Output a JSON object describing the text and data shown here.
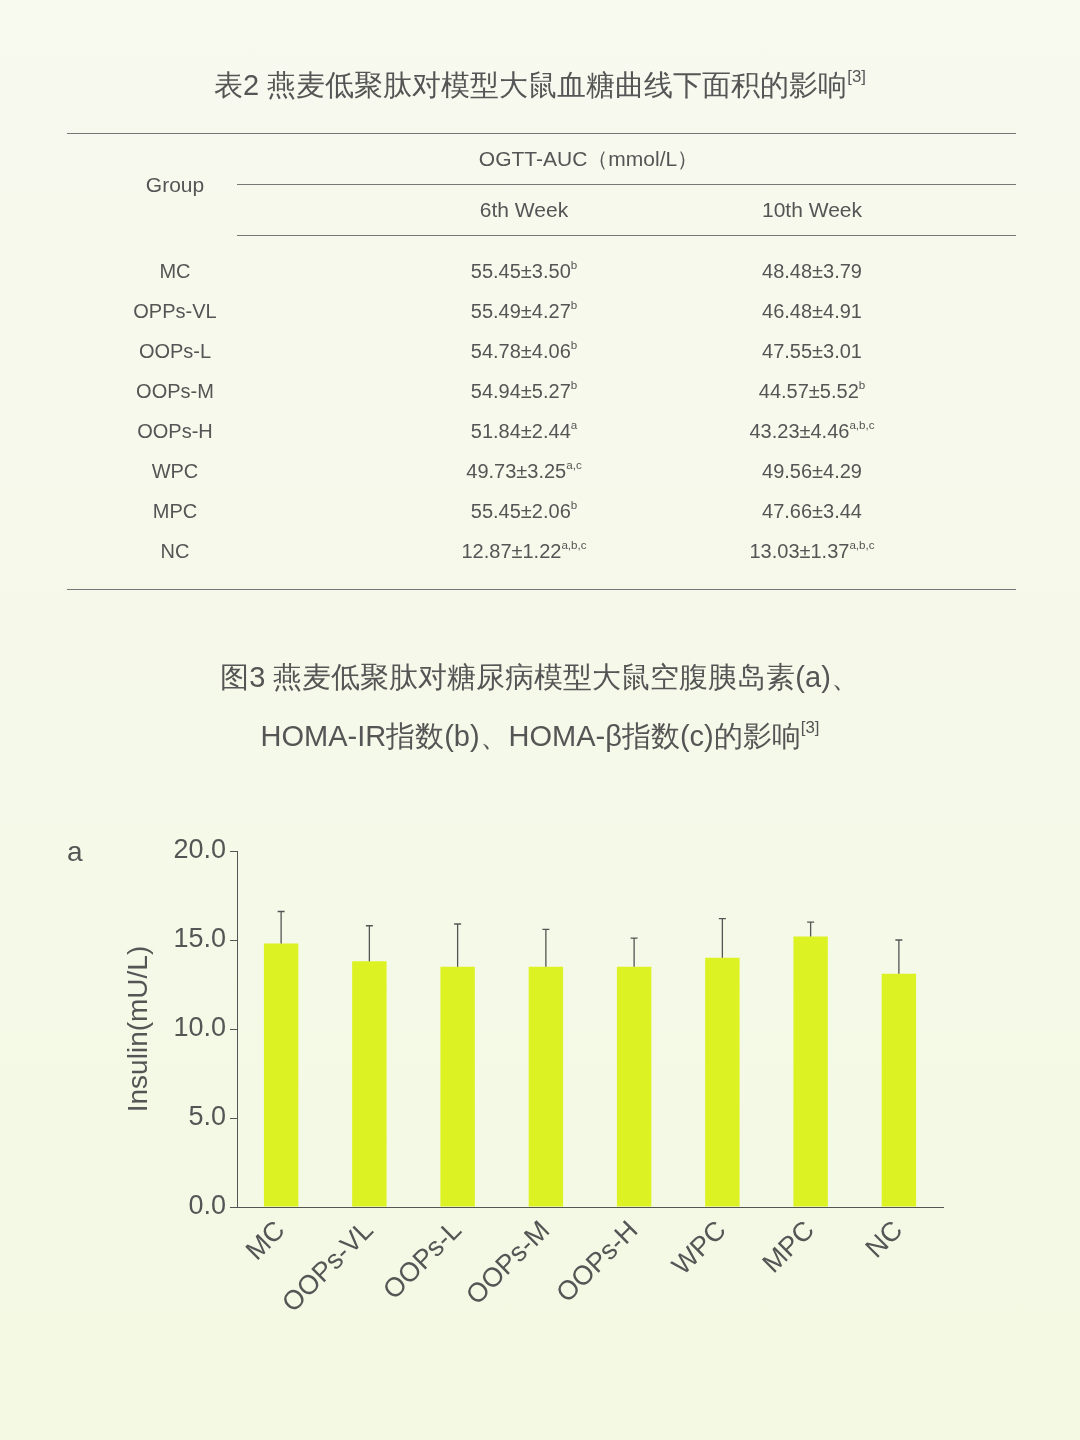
{
  "chart_data": [
    {
      "type": "other",
      "title": "表2 燕麦低聚肽对模型大鼠血糖曲线下面积的影响$^{[3]}$",
      "ylabel": "Group",
      "xlabel": "OGTT-AUC（mmol/L）",
      "categories": [
        "6th Week",
        "10th Week"
      ],
      "y_categories": [
        "MC",
        "OPPs-VL",
        "OOPs-L",
        "OOPs-M",
        "OOPs-H",
        "WPC",
        "MPC",
        "NC"
      ],
      "cell_labels": [
        [
          "55.45±3.50$^{b}$",
          "48.48±3.79"
        ],
        [
          "55.49±4.27$^{b}$",
          "46.48±4.91"
        ],
        [
          "54.78±4.06$^{b}$",
          "47.55±3.01"
        ],
        [
          "54.94±5.27$^{b}$",
          "44.57±5.52$^{b}$"
        ],
        [
          "51.84±2.44$^{a}$",
          "43.23±4.46$^{a,b,c}$"
        ],
        [
          "49.73±3.25$^{a,c}$",
          "49.56±4.29"
        ],
        [
          "55.45±2.06$^{b}$",
          "47.66±3.44"
        ],
        [
          "12.87±1.22$^{a,b,c}$",
          "13.03±1.37$^{a,b,c}$"
        ]
      ]
    },
    {
      "type": "bar",
      "title": "图3 燕麦低聚肽对糖尿病模型大鼠空腹胰岛素(a)、HOMA-IR指数(b)、HOMA-β指数(c)的影响$^{[3]}$",
      "ylabel": "Insulin(mU/L)",
      "annotations": [
        "a"
      ],
      "categories": [
        "MC",
        "OOPs-VL",
        "OOPs-L",
        "OOPs-M",
        "OOPs-H",
        "WPC",
        "MPC",
        "NC"
      ],
      "values": [
        14.8,
        13.8,
        13.5,
        13.5,
        13.5,
        14.0,
        15.2,
        13.1
      ],
      "color": "#dcf222",
      "errors": [
        [
          14.8,
          16.6
        ],
        [
          13.8,
          15.8
        ],
        [
          13.5,
          15.9
        ],
        [
          13.5,
          15.6
        ],
        [
          13.5,
          15.1
        ],
        [
          14.0,
          16.2
        ],
        [
          15.2,
          16.0
        ],
        [
          13.1,
          15.0
        ]
      ],
      "ylim": [
        0,
        20
      ],
      "yticks": [
        {
          "value": 0,
          "label": "0.0"
        },
        {
          "value": 5,
          "label": "5.0"
        },
        {
          "value": 10,
          "label": "10.0"
        },
        {
          "value": 15,
          "label": "15.0"
        },
        {
          "value": 20,
          "label": "20.0"
        }
      ]
    }
  ]
}
